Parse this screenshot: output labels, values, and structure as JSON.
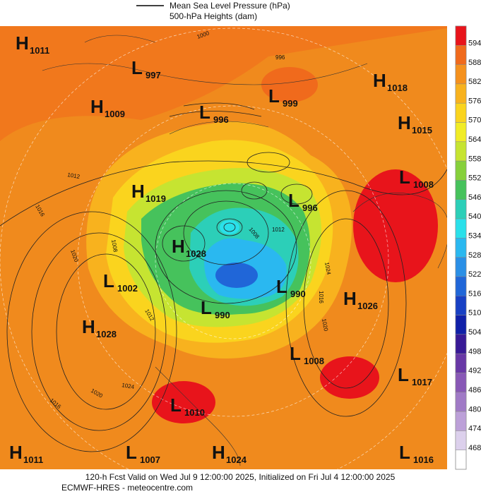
{
  "legend": {
    "items": [
      "Mean Sea Level Pressure (hPa)",
      "500-hPa Heights (dam)"
    ]
  },
  "systems": [
    {
      "type": "H",
      "value": "1011"
    },
    {
      "type": "L",
      "value": "997"
    },
    {
      "type": "H",
      "value": "1009"
    },
    {
      "type": "L",
      "value": "999"
    },
    {
      "type": "H",
      "value": "1018"
    },
    {
      "type": "L",
      "value": "996"
    },
    {
      "type": "H",
      "value": "1015"
    },
    {
      "type": "L",
      "value": "1008"
    },
    {
      "type": "H",
      "value": "1019"
    },
    {
      "type": "L",
      "value": "996"
    },
    {
      "type": "H",
      "value": "1028"
    },
    {
      "type": "L",
      "value": "1002"
    },
    {
      "type": "L",
      "value": "990"
    },
    {
      "type": "H",
      "value": "1026"
    },
    {
      "type": "L",
      "value": "990"
    },
    {
      "type": "H",
      "value": "1028"
    },
    {
      "type": "L",
      "value": "1008"
    },
    {
      "type": "L",
      "value": "1017"
    },
    {
      "type": "L",
      "value": "1010"
    },
    {
      "type": "H",
      "value": "1011"
    },
    {
      "type": "L",
      "value": "1007"
    },
    {
      "type": "H",
      "value": "1024"
    },
    {
      "type": "L",
      "value": "1016"
    }
  ],
  "isobar_labels": [
    "1000",
    "996",
    "1012",
    "1016",
    "1020",
    "1008",
    "1012",
    "1020",
    "1024",
    "1016",
    "1008",
    "1012",
    "1024",
    "1016",
    "1020"
  ],
  "colorbar": {
    "labels": [
      "594",
      "588",
      "582",
      "576",
      "570",
      "564",
      "558",
      "552",
      "546",
      "540",
      "534",
      "528",
      "522",
      "516",
      "510",
      "504",
      "498",
      "492",
      "486",
      "480",
      "474",
      "468"
    ],
    "colors": [
      "#e8141b",
      "#f06a1c",
      "#f5911d",
      "#f8b21e",
      "#fad41e",
      "#f1ec26",
      "#c6e431",
      "#86d03b",
      "#46c25c",
      "#2ccfb8",
      "#2ae0ea",
      "#2ab8f0",
      "#2a8fe6",
      "#2066d8",
      "#1840c4",
      "#1020a8",
      "#381a96",
      "#6838a6",
      "#8858b6",
      "#a07ac6",
      "#bca0d8",
      "#dcd0ec"
    ]
  },
  "footer": {
    "line1": "120-h Fcst Valid on Wed Jul  9 12:00:00 2025, Initialized on Fri Jul  4 12:00:00 2025",
    "line2": "ECMWF-HRES  - meteocentre.com"
  }
}
